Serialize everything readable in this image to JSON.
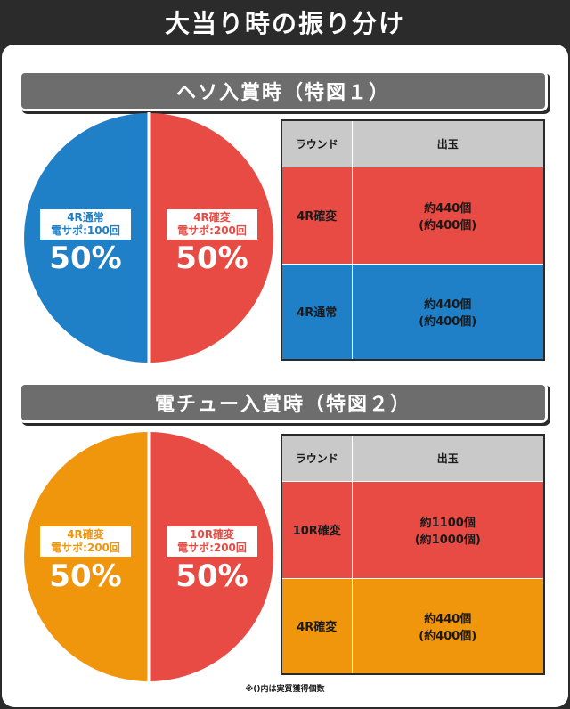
{
  "title": "大当り時の振り分け",
  "colors": {
    "blue": "#1f80c8",
    "red": "#e84a44",
    "orange": "#f0960c",
    "gray_header": "#c9c9c9"
  },
  "chart_data": [
    {
      "type": "pie",
      "title": "ヘソ入賞時（特図１）",
      "slices": [
        {
          "name": "4R確変 電サポ:200回",
          "line1": "4R確変",
          "line2": "電サポ:200回",
          "value": 50,
          "label": "50%",
          "color": "#e84a44"
        },
        {
          "name": "4R通常 電サポ:100回",
          "line1": "4R通常",
          "line2": "電サポ:100回",
          "value": 50,
          "label": "50%",
          "color": "#1f80c8"
        }
      ],
      "table": {
        "headers": [
          "ラウンド",
          "出玉"
        ],
        "rows": [
          {
            "round": "4R確変",
            "payout1": "約440個",
            "payout2": "(約400個)",
            "color": "#e84a44"
          },
          {
            "round": "4R通常",
            "payout1": "約440個",
            "payout2": "(約400個)",
            "color": "#1f80c8"
          }
        ]
      }
    },
    {
      "type": "pie",
      "title": "電チュー入賞時（特図２）",
      "slices": [
        {
          "name": "10R確変 電サポ:200回",
          "line1": "10R確変",
          "line2": "電サポ:200回",
          "value": 50,
          "label": "50%",
          "color": "#e84a44"
        },
        {
          "name": "4R確変 電サポ:200回",
          "line1": "4R確変",
          "line2": "電サポ:200回",
          "value": 50,
          "label": "50%",
          "color": "#f0960c"
        }
      ],
      "table": {
        "headers": [
          "ラウンド",
          "出玉"
        ],
        "rows": [
          {
            "round": "10R確変",
            "payout1": "約1100個",
            "payout2": "(約1000個)",
            "color": "#e84a44"
          },
          {
            "round": "4R確変",
            "payout1": "約440個",
            "payout2": "(約400個)",
            "color": "#f0960c"
          }
        ]
      }
    }
  ],
  "footnote": "※()内は実質獲得個数"
}
